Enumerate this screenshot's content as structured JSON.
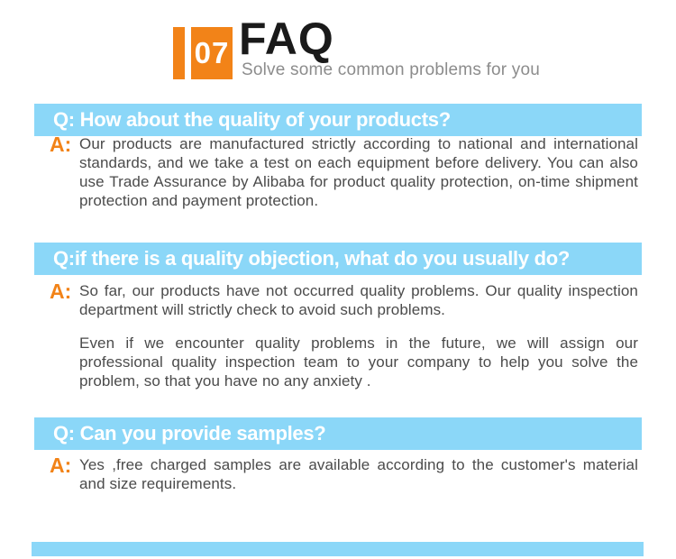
{
  "header": {
    "section_number": "07",
    "title": "FAQ",
    "subtitle": "Solve some common problems for you"
  },
  "colors": {
    "accent_orange": "#F28318",
    "question_bar_blue": "#8BD7F8",
    "question_text": "#FFFFFF",
    "title_text": "#1A1A1A",
    "subtitle_text": "#8C8C8C",
    "answer_text": "#4B4B4B"
  },
  "faq": {
    "answer_prefix": "A:",
    "items": [
      {
        "question": "Q: How about the quality of your products?",
        "answers": [
          "Our products are manufactured strictly according to national and international standards, and we take a test on each equipment before delivery. You can also use Trade Assurance by Alibaba for product quality protection, on-time shipment protection and payment protection."
        ]
      },
      {
        "question": "Q:if there is a quality objection, what do you usually do?",
        "answers": [
          "So far, our products have not occurred quality problems. Our quality inspection department will strictly check to avoid such problems.",
          "Even if we encounter quality problems in the future, we will assign our professional quality inspection team to your company to help you solve the problem, so that you have no any anxiety ."
        ]
      },
      {
        "question": "Q: Can you provide samples?",
        "answers": [
          "Yes ,free charged samples are available according to the customer's material and size requirements."
        ]
      }
    ]
  }
}
